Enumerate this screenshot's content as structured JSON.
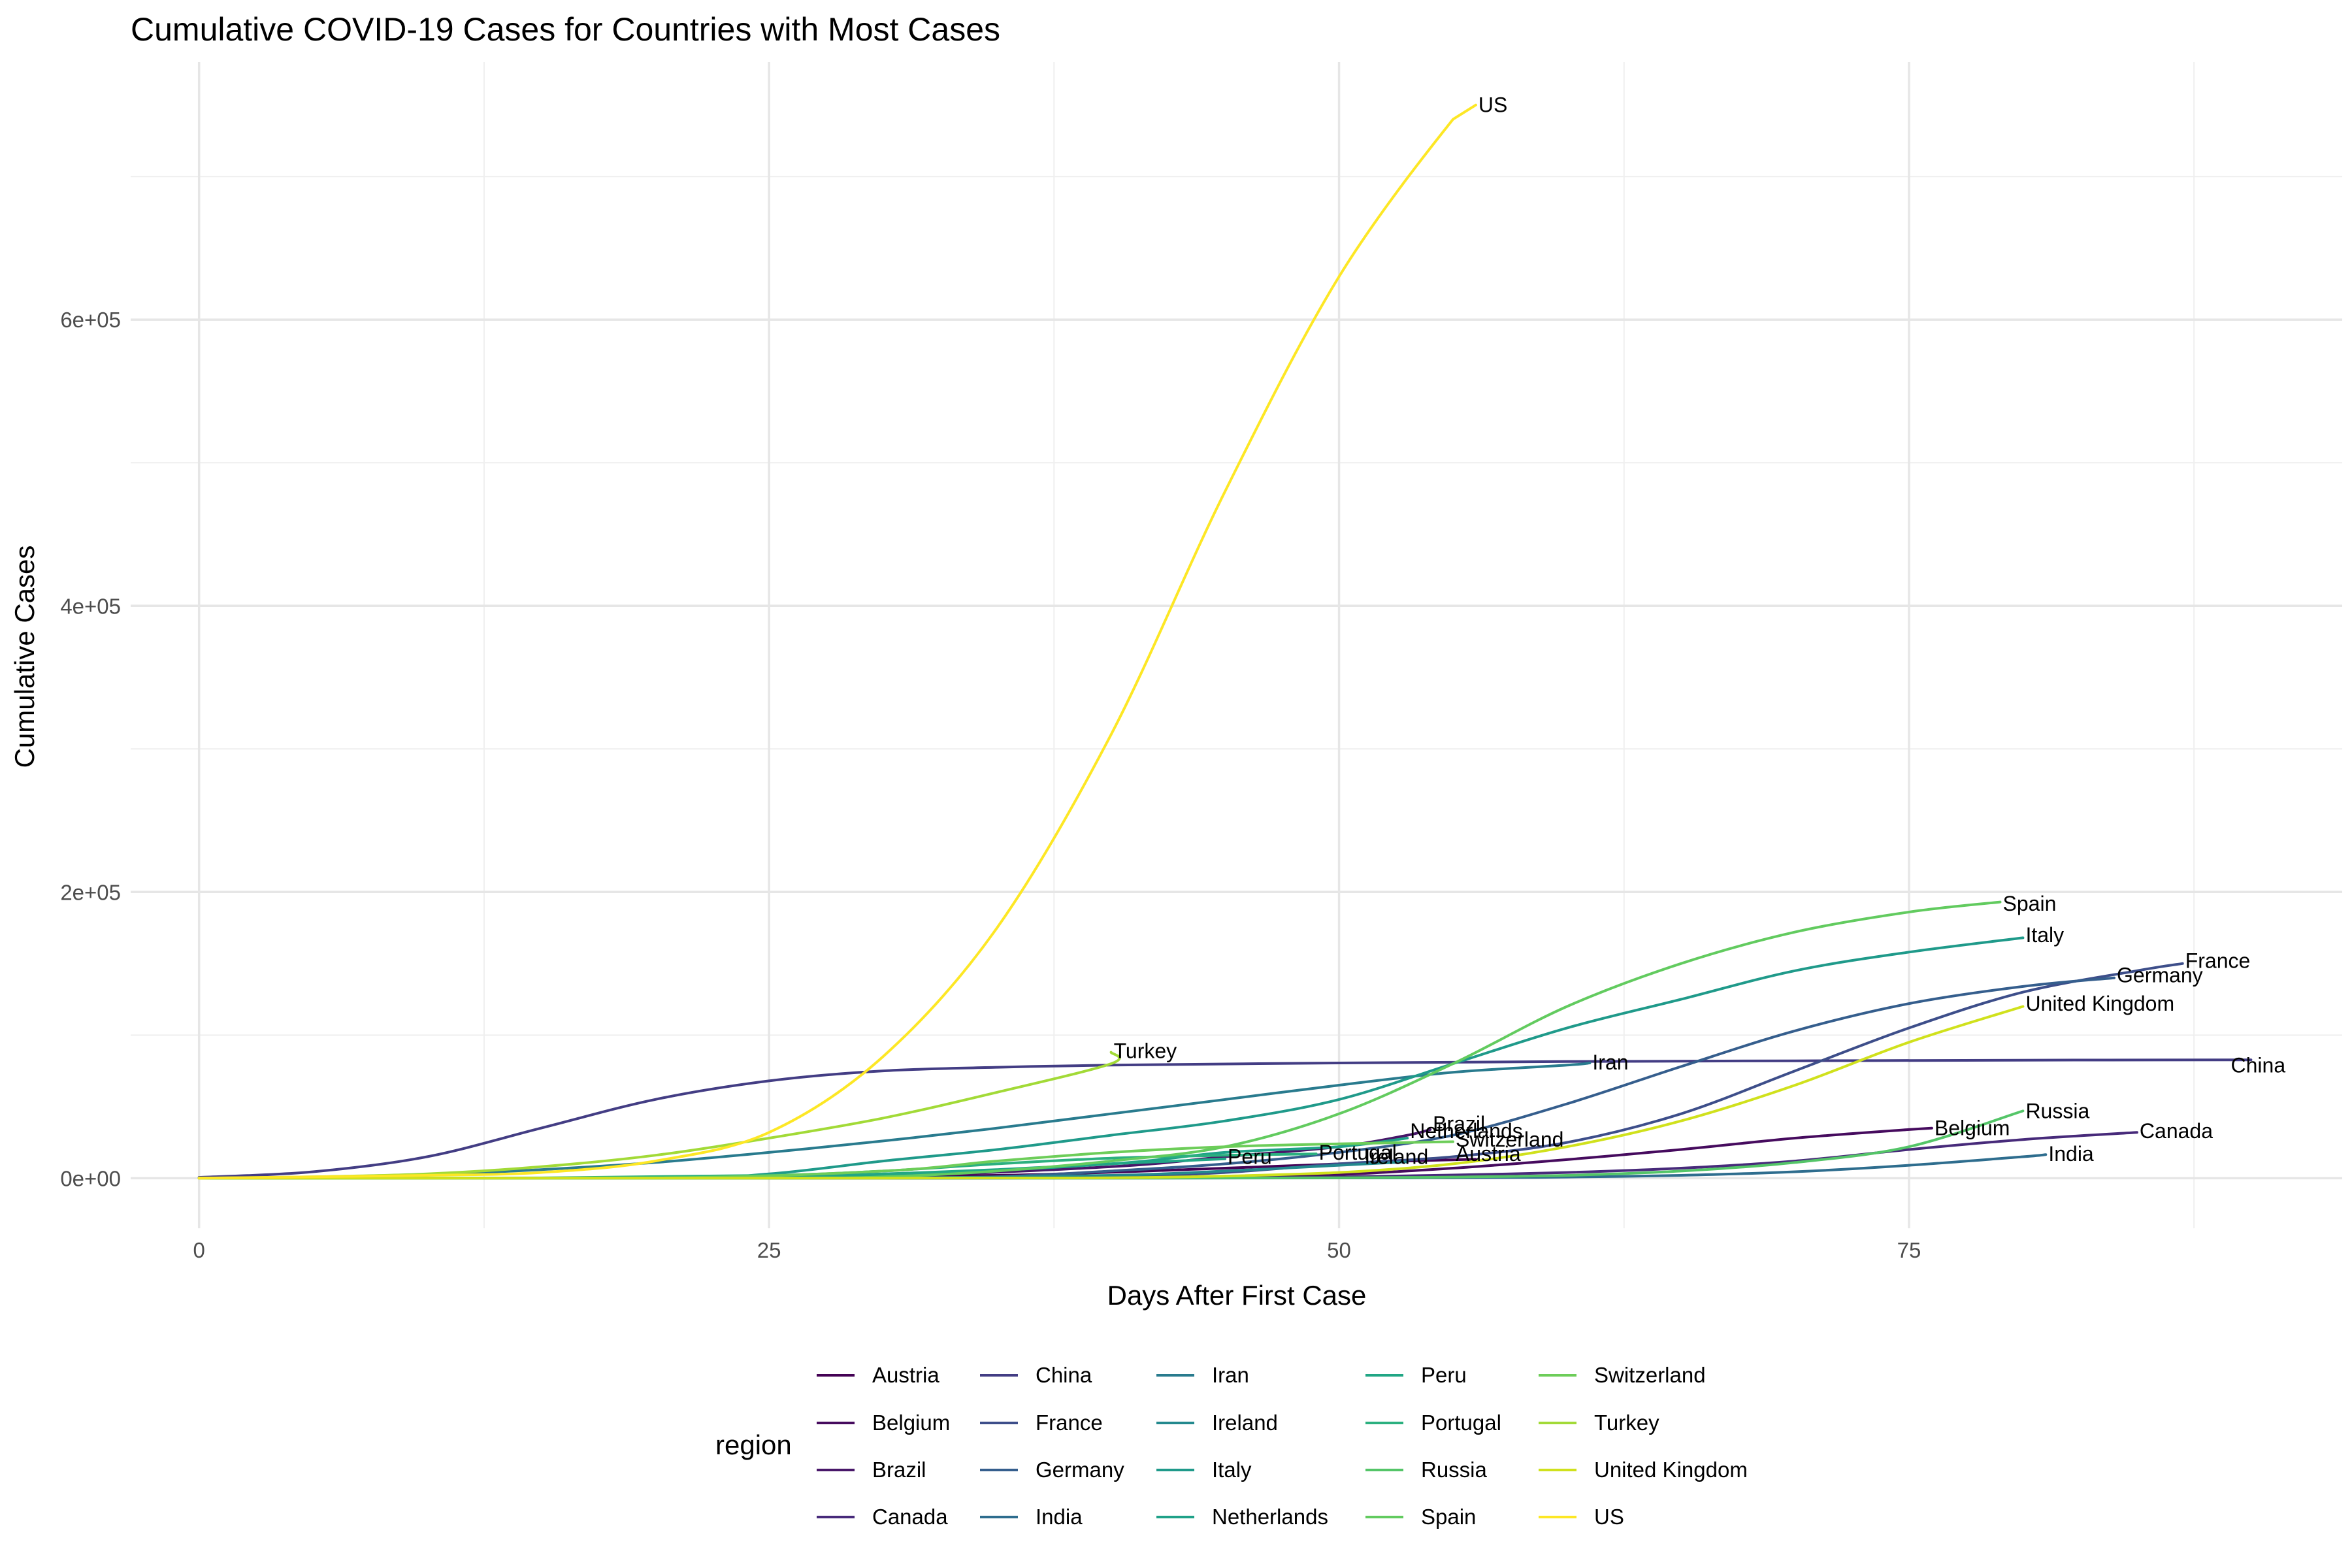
{
  "chart_data": {
    "type": "line",
    "title": "Cumulative COVID-19 Cases for Countries with Most Cases",
    "xlabel": "Days After First Case",
    "ylabel": "Cumulative Cases",
    "xlim": [
      -3,
      94
    ],
    "ylim": [
      -35000,
      780000
    ],
    "x_ticks": [
      0,
      25,
      50,
      75
    ],
    "x_tick_labels": [
      "0",
      "25",
      "50",
      "75"
    ],
    "y_ticks": [
      0,
      200000,
      400000,
      600000
    ],
    "y_tick_labels": [
      "0e+00",
      "2e+05",
      "4e+05",
      "6e+05"
    ],
    "grid": true,
    "legend_title": "region",
    "legend_position": "bottom",
    "series": [
      {
        "name": "Austria",
        "color": "#440154",
        "points": [
          [
            0,
            0
          ],
          [
            20,
            100
          ],
          [
            35,
            2000
          ],
          [
            45,
            7000
          ],
          [
            50,
            10000
          ],
          [
            53,
            12000
          ],
          [
            56,
            13200
          ]
        ]
      },
      {
        "name": "Belgium",
        "color": "#460B5E",
        "points": [
          [
            0,
            0
          ],
          [
            25,
            10
          ],
          [
            35,
            100
          ],
          [
            45,
            800
          ],
          [
            50,
            2500
          ],
          [
            55,
            7000
          ],
          [
            60,
            13000
          ],
          [
            65,
            20000
          ],
          [
            70,
            28000
          ],
          [
            75,
            34000
          ],
          [
            76,
            35000
          ]
        ]
      },
      {
        "name": "Brazil",
        "color": "#481769",
        "points": [
          [
            0,
            0
          ],
          [
            20,
            50
          ],
          [
            30,
            1500
          ],
          [
            40,
            8000
          ],
          [
            45,
            15000
          ],
          [
            50,
            22000
          ],
          [
            53,
            30000
          ],
          [
            54,
            34000
          ]
        ]
      },
      {
        "name": "Canada",
        "color": "#472A7A",
        "points": [
          [
            0,
            0
          ],
          [
            30,
            50
          ],
          [
            45,
            300
          ],
          [
            50,
            900
          ],
          [
            55,
            2200
          ],
          [
            60,
            4000
          ],
          [
            65,
            7000
          ],
          [
            70,
            12000
          ],
          [
            75,
            20000
          ],
          [
            80,
            27000
          ],
          [
            85,
            32000
          ]
        ]
      },
      {
        "name": "China",
        "color": "#433D84",
        "points": [
          [
            0,
            550
          ],
          [
            5,
            4500
          ],
          [
            10,
            15000
          ],
          [
            15,
            35000
          ],
          [
            20,
            55000
          ],
          [
            25,
            68000
          ],
          [
            30,
            75000
          ],
          [
            35,
            77500
          ],
          [
            40,
            79000
          ],
          [
            50,
            80500
          ],
          [
            60,
            81500
          ],
          [
            70,
            82000
          ],
          [
            80,
            82500
          ],
          [
            90,
            82700
          ]
        ]
      },
      {
        "name": "France",
        "color": "#3D4E8A",
        "points": [
          [
            0,
            0
          ],
          [
            30,
            10
          ],
          [
            40,
            1000
          ],
          [
            45,
            4000
          ],
          [
            50,
            10000
          ],
          [
            55,
            15000
          ],
          [
            60,
            25000
          ],
          [
            65,
            45000
          ],
          [
            70,
            75000
          ],
          [
            75,
            105000
          ],
          [
            80,
            130000
          ],
          [
            85,
            145000
          ],
          [
            87,
            150000
          ]
        ]
      },
      {
        "name": "Germany",
        "color": "#355E8D",
        "points": [
          [
            0,
            0
          ],
          [
            30,
            50
          ],
          [
            35,
            1000
          ],
          [
            40,
            5000
          ],
          [
            45,
            10000
          ],
          [
            50,
            18000
          ],
          [
            55,
            30000
          ],
          [
            60,
            52000
          ],
          [
            65,
            78000
          ],
          [
            70,
            103000
          ],
          [
            75,
            122000
          ],
          [
            80,
            134000
          ],
          [
            84,
            140000
          ]
        ]
      },
      {
        "name": "India",
        "color": "#2E6D8E",
        "points": [
          [
            0,
            0
          ],
          [
            40,
            30
          ],
          [
            55,
            300
          ],
          [
            60,
            800
          ],
          [
            65,
            2000
          ],
          [
            70,
            4500
          ],
          [
            75,
            9000
          ],
          [
            80,
            15000
          ],
          [
            81,
            16500
          ]
        ]
      },
      {
        "name": "Iran",
        "color": "#297B8E",
        "points": [
          [
            0,
            0
          ],
          [
            5,
            600
          ],
          [
            10,
            2500
          ],
          [
            15,
            6000
          ],
          [
            20,
            11000
          ],
          [
            25,
            18000
          ],
          [
            30,
            26000
          ],
          [
            35,
            35000
          ],
          [
            40,
            45000
          ],
          [
            45,
            55000
          ],
          [
            50,
            65000
          ],
          [
            55,
            74000
          ],
          [
            60,
            79000
          ],
          [
            61,
            80500
          ]
        ]
      },
      {
        "name": "Ireland",
        "color": "#23898E",
        "points": [
          [
            0,
            0
          ],
          [
            20,
            10
          ],
          [
            30,
            150
          ],
          [
            40,
            2000
          ],
          [
            45,
            5000
          ],
          [
            50,
            9000
          ],
          [
            53,
            11500
          ]
        ]
      },
      {
        "name": "Italy",
        "color": "#1F9A8A",
        "points": [
          [
            0,
            0
          ],
          [
            20,
            50
          ],
          [
            25,
            3000
          ],
          [
            30,
            12000
          ],
          [
            35,
            20000
          ],
          [
            40,
            30000
          ],
          [
            45,
            40000
          ],
          [
            50,
            55000
          ],
          [
            55,
            80000
          ],
          [
            60,
            105000
          ],
          [
            65,
            125000
          ],
          [
            70,
            145000
          ],
          [
            75,
            158000
          ],
          [
            80,
            168000
          ]
        ]
      },
      {
        "name": "Netherlands",
        "color": "#1FA188",
        "points": [
          [
            0,
            0
          ],
          [
            20,
            50
          ],
          [
            30,
            2000
          ],
          [
            40,
            10000
          ],
          [
            45,
            18000
          ],
          [
            50,
            22000
          ],
          [
            53,
            28000
          ]
        ]
      },
      {
        "name": "Peru",
        "color": "#21A685",
        "points": [
          [
            0,
            0
          ],
          [
            15,
            20
          ],
          [
            25,
            800
          ],
          [
            30,
            3000
          ],
          [
            35,
            6000
          ],
          [
            40,
            10000
          ],
          [
            45,
            13500
          ]
        ]
      },
      {
        "name": "Portugal",
        "color": "#2BB07F",
        "points": [
          [
            0,
            0
          ],
          [
            15,
            200
          ],
          [
            25,
            2000
          ],
          [
            30,
            5000
          ],
          [
            35,
            10000
          ],
          [
            40,
            14000
          ],
          [
            45,
            16000
          ],
          [
            49,
            17000
          ]
        ]
      },
      {
        "name": "Russia",
        "color": "#54C568",
        "points": [
          [
            0,
            0
          ],
          [
            40,
            50
          ],
          [
            50,
            300
          ],
          [
            55,
            800
          ],
          [
            60,
            2000
          ],
          [
            65,
            5000
          ],
          [
            70,
            11000
          ],
          [
            75,
            22000
          ],
          [
            80,
            47000
          ]
        ]
      },
      {
        "name": "Spain",
        "color": "#62CB5F",
        "points": [
          [
            0,
            0
          ],
          [
            25,
            100
          ],
          [
            30,
            1000
          ],
          [
            35,
            5000
          ],
          [
            40,
            12000
          ],
          [
            45,
            22000
          ],
          [
            50,
            45000
          ],
          [
            55,
            80000
          ],
          [
            60,
            120000
          ],
          [
            65,
            150000
          ],
          [
            70,
            172000
          ],
          [
            75,
            186000
          ],
          [
            79,
            193000
          ]
        ]
      },
      {
        "name": "Switzerland",
        "color": "#6DCD59",
        "points": [
          [
            0,
            0
          ],
          [
            20,
            200
          ],
          [
            30,
            5000
          ],
          [
            35,
            12000
          ],
          [
            40,
            18000
          ],
          [
            45,
            22000
          ],
          [
            50,
            24000
          ],
          [
            55,
            25500
          ]
        ]
      },
      {
        "name": "Turkey",
        "color": "#A2DA37",
        "points": [
          [
            0,
            0
          ],
          [
            5,
            1000
          ],
          [
            10,
            3000
          ],
          [
            15,
            8000
          ],
          [
            20,
            16000
          ],
          [
            25,
            28000
          ],
          [
            30,
            42000
          ],
          [
            35,
            60000
          ],
          [
            40,
            80000
          ],
          [
            40,
            88000
          ]
        ]
      },
      {
        "name": "United Kingdom",
        "color": "#D0E11C",
        "points": [
          [
            0,
            0
          ],
          [
            30,
            50
          ],
          [
            40,
            300
          ],
          [
            45,
            1500
          ],
          [
            50,
            4000
          ],
          [
            55,
            10000
          ],
          [
            60,
            22000
          ],
          [
            65,
            40000
          ],
          [
            70,
            65000
          ],
          [
            75,
            95000
          ],
          [
            80,
            120000
          ]
        ]
      },
      {
        "name": "US",
        "color": "#FDE725",
        "points": [
          [
            0,
            0
          ],
          [
            10,
            2000
          ],
          [
            15,
            4000
          ],
          [
            20,
            12000
          ],
          [
            25,
            32000
          ],
          [
            30,
            85000
          ],
          [
            35,
            175000
          ],
          [
            40,
            310000
          ],
          [
            45,
            480000
          ],
          [
            50,
            630000
          ],
          [
            55,
            740000
          ],
          [
            56,
            750000
          ]
        ]
      }
    ],
    "end_labels": [
      {
        "text": "US",
        "x": 56,
        "y": 750000
      },
      {
        "text": "Spain",
        "x": 79,
        "y": 192000
      },
      {
        "text": "Italy",
        "x": 80,
        "y": 170000
      },
      {
        "text": "France",
        "x": 87,
        "y": 152000
      },
      {
        "text": "Germany",
        "x": 84,
        "y": 142000
      },
      {
        "text": "United Kingdom",
        "x": 80,
        "y": 122000
      },
      {
        "text": "Turkey",
        "x": 40,
        "y": 89000
      },
      {
        "text": "Iran",
        "x": 61,
        "y": 81000
      },
      {
        "text": "China",
        "x": 89,
        "y": 79000
      },
      {
        "text": "Russia",
        "x": 80,
        "y": 47000
      },
      {
        "text": "Brazil",
        "x": 54,
        "y": 38000
      },
      {
        "text": "Netherlands",
        "x": 53,
        "y": 33000
      },
      {
        "text": "Belgium",
        "x": 76,
        "y": 35000
      },
      {
        "text": "Canada",
        "x": 85,
        "y": 33000
      },
      {
        "text": "Switzerland",
        "x": 55,
        "y": 27000
      },
      {
        "text": "Portugal",
        "x": 49,
        "y": 18000
      },
      {
        "text": "Peru",
        "x": 45,
        "y": 15000
      },
      {
        "text": "Ireland",
        "x": 51,
        "y": 15000
      },
      {
        "text": "Austria",
        "x": 55,
        "y": 17000
      },
      {
        "text": "India",
        "x": 81,
        "y": 17000
      }
    ]
  }
}
